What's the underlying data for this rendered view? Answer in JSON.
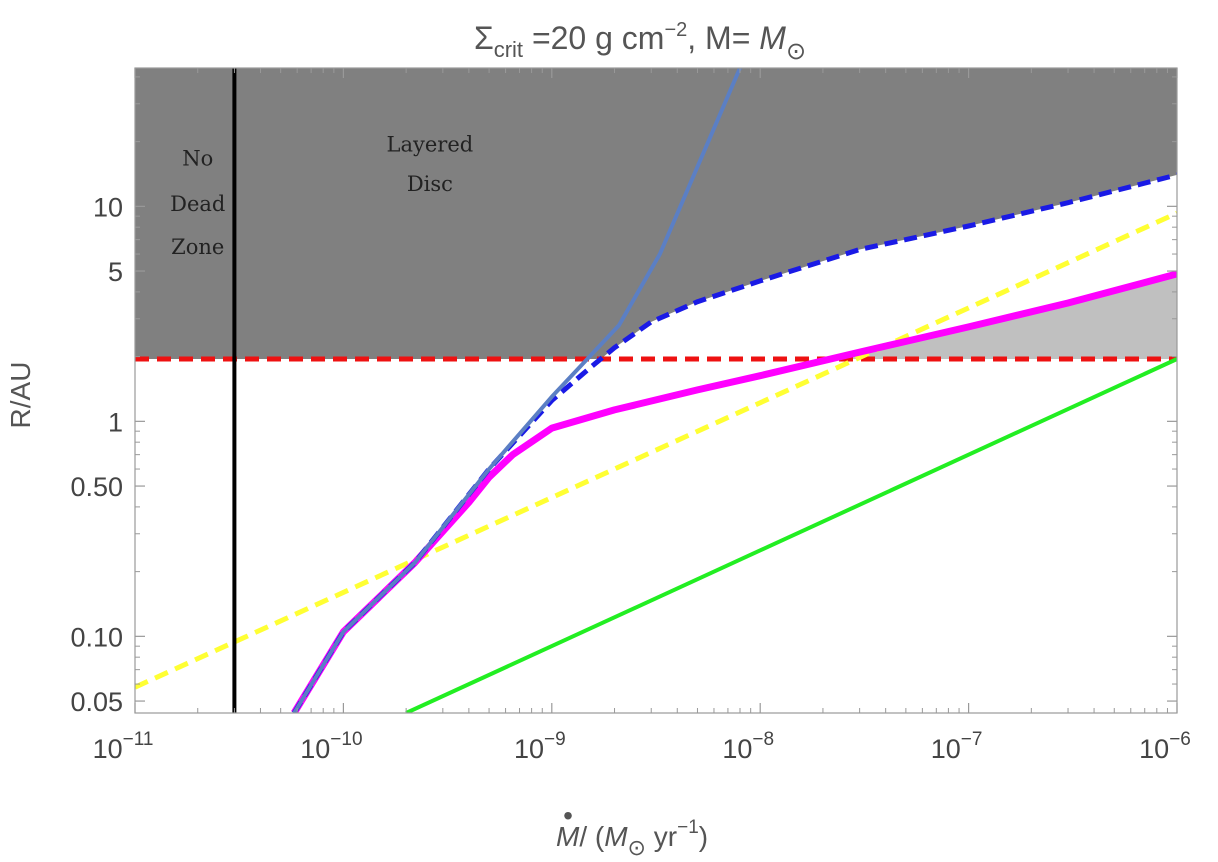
{
  "chart_data": {
    "type": "line",
    "title": {
      "sigma": "Σ",
      "sigma_sub": "crit",
      "value_text": " =20 g cm",
      "unit_exp": "−2",
      "mass_text": ", M= ",
      "mass_symbol": "M",
      "mass_sub": "⊙"
    },
    "xlabel": {
      "dot": "•",
      "main": "M",
      "slash": "/ (",
      "msun": "M",
      "msun_sub": "⊙",
      "unit": " yr",
      "unit_exp": "−1",
      "close": ")"
    },
    "ylabel": "R/AU",
    "x_scale": "log",
    "y_scale": "log",
    "xlim": [
      1e-11,
      1e-06
    ],
    "ylim": [
      0.044,
      44
    ],
    "x_ticks": [
      {
        "value": 1e-11,
        "base": "10",
        "exp": "−11"
      },
      {
        "value": 1e-10,
        "base": "10",
        "exp": "−10"
      },
      {
        "value": 1e-09,
        "base": "10",
        "exp": "−9"
      },
      {
        "value": 1e-08,
        "base": "10",
        "exp": "−8"
      },
      {
        "value": 1e-07,
        "base": "10",
        "exp": "−7"
      },
      {
        "value": 1e-06,
        "base": "10",
        "exp": "−6"
      }
    ],
    "y_ticks": [
      {
        "value": 0.05,
        "label": "0.05"
      },
      {
        "value": 0.1,
        "label": "0.10"
      },
      {
        "value": 0.5,
        "label": "0.50"
      },
      {
        "value": 1,
        "label": "1"
      },
      {
        "value": 5,
        "label": "5"
      },
      {
        "value": 10,
        "label": "10"
      }
    ],
    "grid": false,
    "legend": "none",
    "annotations": [
      {
        "text": [
          "No",
          "Dead",
          "Zone"
        ],
        "x": 2e-11,
        "y": [
          15.5,
          9.5,
          6.0
        ]
      },
      {
        "text": [
          "Layered",
          "Disc"
        ],
        "x": 2.6e-10,
        "y": [
          18.0,
          11.8
        ]
      }
    ],
    "series": [
      {
        "style": "blue-solid",
        "color": "#5b7fc4",
        "points": [
          [
            5.8e-11,
            0.044
          ],
          [
            1e-10,
            0.105
          ],
          [
            2.2e-10,
            0.22
          ],
          [
            5e-10,
            0.6
          ],
          [
            1e-09,
            1.3
          ],
          [
            2.1e-09,
            2.8
          ],
          [
            3.3e-09,
            6.0
          ],
          [
            8e-09,
            44
          ]
        ]
      },
      {
        "style": "blue-dashed",
        "color": "#1a1ae6",
        "points": [
          [
            5.8e-11,
            0.044
          ],
          [
            1e-10,
            0.105
          ],
          [
            2.2e-10,
            0.22
          ],
          [
            5e-10,
            0.6
          ],
          [
            1e-09,
            1.25
          ],
          [
            1.5e-09,
            1.75
          ],
          [
            2e-09,
            2.2
          ],
          [
            3e-09,
            2.9
          ],
          [
            5e-09,
            3.6
          ],
          [
            1e-08,
            4.5
          ],
          [
            3e-08,
            6.3
          ],
          [
            1e-07,
            8.1
          ],
          [
            3e-07,
            10.4
          ],
          [
            1e-06,
            14.0
          ]
        ]
      },
      {
        "style": "magenta-thick",
        "color": "#ff00ff",
        "points": [
          [
            5.8e-11,
            0.044
          ],
          [
            1e-10,
            0.105
          ],
          [
            2.2e-10,
            0.22
          ],
          [
            4e-10,
            0.42
          ],
          [
            5e-10,
            0.55
          ],
          [
            6.5e-10,
            0.7
          ],
          [
            1e-09,
            0.93
          ],
          [
            2e-09,
            1.13
          ],
          [
            5e-09,
            1.4
          ],
          [
            1e-08,
            1.63
          ],
          [
            3e-08,
            2.1
          ],
          [
            1e-07,
            2.75
          ],
          [
            3e-07,
            3.55
          ],
          [
            1e-06,
            4.85
          ]
        ]
      },
      {
        "style": "yellow-dashed",
        "color": "#ffff33",
        "points": [
          [
            1e-11,
            0.058
          ],
          [
            1e-06,
            9.3
          ]
        ]
      },
      {
        "style": "green-solid",
        "color": "#22ee22",
        "points": [
          [
            2e-10,
            0.044
          ],
          [
            1e-06,
            1.95
          ]
        ]
      },
      {
        "style": "red-dashed",
        "color": "#ee1111",
        "points": [
          [
            1e-11,
            1.95
          ],
          [
            1e-06,
            1.95
          ]
        ]
      },
      {
        "style": "black-vertical",
        "color": "#000000",
        "points": [
          [
            3e-11,
            0.044
          ],
          [
            3e-11,
            44
          ]
        ]
      }
    ],
    "regions": [
      {
        "fill": "#808080",
        "description_key": "dark-grey-layered-region"
      },
      {
        "fill": "#c0c0c0",
        "description_key": "light-grey-region"
      }
    ]
  }
}
